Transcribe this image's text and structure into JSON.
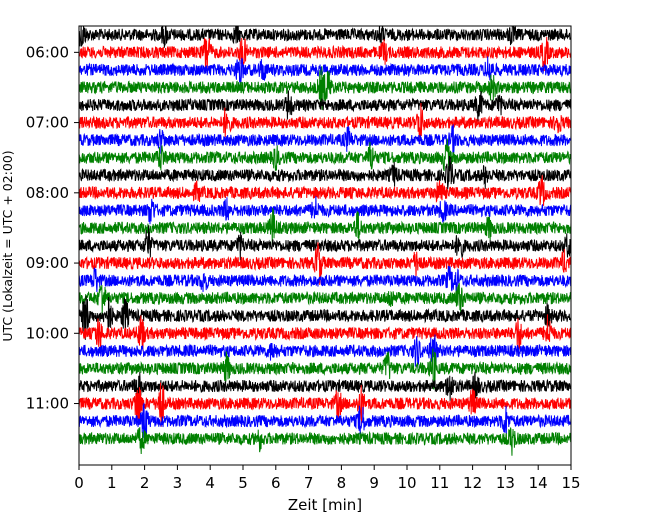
{
  "chart_data": {
    "type": "line",
    "subtype": "helicorder",
    "title": "",
    "xlabel": "Zeit  [min]",
    "ylabel": "UTC (Lokalzeit = UTC + 02:00)",
    "xlim": [
      0,
      15
    ],
    "x_ticks": [
      "0",
      "1",
      "2",
      "3",
      "4",
      "5",
      "6",
      "7",
      "8",
      "9",
      "10",
      "11",
      "12",
      "13",
      "14",
      "15"
    ],
    "y_axis": {
      "start": "05:45",
      "end": "12:00",
      "line_interval_minutes": 15,
      "inverted": true
    },
    "y_ticks": [
      "06:00",
      "07:00",
      "08:00",
      "09:00",
      "10:00",
      "11:00"
    ],
    "trace_colors": [
      "#000000",
      "#ff0000",
      "#0000ff",
      "#008000"
    ],
    "grid": false,
    "legend": "none",
    "traces": [
      {
        "line_start": "05:45",
        "color": "black",
        "bursts": [
          [
            0.1,
            0.6
          ],
          [
            2.6,
            0.5
          ],
          [
            4.8,
            0.4
          ],
          [
            9.2,
            0.4
          ],
          [
            13.2,
            0.5
          ]
        ]
      },
      {
        "line_start": "06:00",
        "color": "red",
        "bursts": [
          [
            3.9,
            1.3
          ],
          [
            5.0,
            0.8
          ],
          [
            9.3,
            0.5
          ],
          [
            14.2,
            0.9
          ]
        ]
      },
      {
        "line_start": "06:15",
        "color": "blue",
        "bursts": [
          [
            4.9,
            0.8
          ],
          [
            5.6,
            0.5
          ],
          [
            12.5,
            0.7
          ]
        ]
      },
      {
        "line_start": "06:30",
        "color": "green",
        "bursts": [
          [
            7.4,
            1.0
          ],
          [
            7.6,
            0.8
          ],
          [
            12.6,
            0.6
          ]
        ]
      },
      {
        "line_start": "06:45",
        "color": "black",
        "bursts": [
          [
            6.4,
            0.7
          ],
          [
            12.2,
            0.8
          ],
          [
            12.8,
            0.5
          ]
        ]
      },
      {
        "line_start": "07:00",
        "color": "red",
        "bursts": [
          [
            4.5,
            0.8
          ],
          [
            10.4,
            1.0
          ],
          [
            14.6,
            0.5
          ]
        ]
      },
      {
        "line_start": "07:15",
        "color": "blue",
        "bursts": [
          [
            2.5,
            0.5
          ],
          [
            8.2,
            0.5
          ],
          [
            11.4,
            0.6
          ]
        ]
      },
      {
        "line_start": "07:30",
        "color": "green",
        "bursts": [
          [
            2.5,
            0.6
          ],
          [
            6.0,
            0.5
          ],
          [
            8.9,
            0.7
          ],
          [
            11.2,
            0.9
          ]
        ]
      },
      {
        "line_start": "07:45",
        "color": "black",
        "bursts": [
          [
            9.6,
            0.5
          ],
          [
            11.3,
            1.0
          ],
          [
            12.4,
            0.5
          ]
        ]
      },
      {
        "line_start": "08:00",
        "color": "red",
        "bursts": [
          [
            3.6,
            0.4
          ],
          [
            11.0,
            0.7
          ],
          [
            14.1,
            0.8
          ]
        ]
      },
      {
        "line_start": "08:15",
        "color": "blue",
        "bursts": [
          [
            2.2,
            0.7
          ],
          [
            4.5,
            0.5
          ],
          [
            7.2,
            0.6
          ],
          [
            11.1,
            0.5
          ]
        ]
      },
      {
        "line_start": "08:30",
        "color": "green",
        "bursts": [
          [
            5.9,
            0.9
          ],
          [
            8.5,
            0.7
          ],
          [
            12.5,
            0.5
          ]
        ]
      },
      {
        "line_start": "08:45",
        "color": "black",
        "bursts": [
          [
            2.1,
            0.9
          ],
          [
            4.9,
            0.6
          ],
          [
            11.6,
            0.8
          ],
          [
            14.9,
            0.5
          ]
        ]
      },
      {
        "line_start": "09:00",
        "color": "red",
        "bursts": [
          [
            7.3,
            1.2
          ],
          [
            10.3,
            0.7
          ],
          [
            14.8,
            0.5
          ]
        ]
      },
      {
        "line_start": "09:15",
        "color": "blue",
        "bursts": [
          [
            0.5,
            0.6
          ],
          [
            3.8,
            0.5
          ],
          [
            11.3,
            0.6
          ],
          [
            11.5,
            0.5
          ]
        ]
      },
      {
        "line_start": "09:30",
        "color": "green",
        "bursts": [
          [
            0.7,
            1.0
          ],
          [
            9.5,
            0.4
          ],
          [
            11.6,
            0.8
          ]
        ]
      },
      {
        "line_start": "09:45",
        "color": "black",
        "bursts": [
          [
            0.2,
            1.2
          ],
          [
            0.9,
            1.0
          ],
          [
            1.4,
            0.9
          ],
          [
            14.3,
            0.5
          ]
        ]
      },
      {
        "line_start": "10:00",
        "color": "red",
        "bursts": [
          [
            0.6,
            0.8
          ],
          [
            1.9,
            1.0
          ],
          [
            13.4,
            0.8
          ],
          [
            14.3,
            0.9
          ]
        ]
      },
      {
        "line_start": "10:15",
        "color": "blue",
        "bursts": [
          [
            5.9,
            0.4
          ],
          [
            10.3,
            0.8
          ],
          [
            10.8,
            1.0
          ]
        ]
      },
      {
        "line_start": "10:30",
        "color": "green",
        "bursts": [
          [
            4.5,
            0.7
          ],
          [
            9.4,
            0.8
          ],
          [
            10.8,
            1.0
          ]
        ]
      },
      {
        "line_start": "10:45",
        "color": "black",
        "bursts": [
          [
            1.8,
            0.7
          ],
          [
            11.3,
            0.8
          ],
          [
            12.1,
            0.6
          ]
        ]
      },
      {
        "line_start": "11:00",
        "color": "red",
        "bursts": [
          [
            1.8,
            1.4
          ],
          [
            2.5,
            1.3
          ],
          [
            7.9,
            0.7
          ],
          [
            8.6,
            0.9
          ],
          [
            12.0,
            0.7
          ]
        ]
      },
      {
        "line_start": "11:15",
        "color": "blue",
        "bursts": [
          [
            2.0,
            1.0
          ],
          [
            8.6,
            0.8
          ],
          [
            13.0,
            0.7
          ]
        ]
      },
      {
        "line_start": "11:30",
        "color": "green",
        "bursts": [
          [
            1.9,
            0.6
          ],
          [
            5.5,
            0.5
          ],
          [
            13.2,
            0.7
          ]
        ]
      }
    ]
  }
}
